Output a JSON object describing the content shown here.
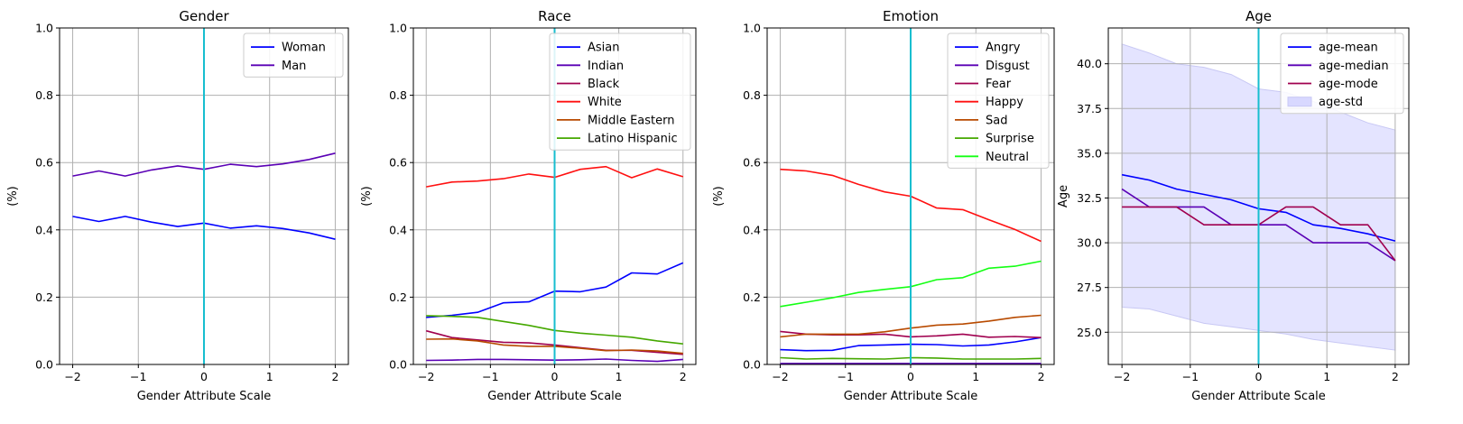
{
  "chart_data": [
    {
      "type": "line",
      "title": "Gender",
      "xlabel": "Gender Attribute Scale",
      "ylabel": "(%)",
      "xlim": [
        -2.2,
        2.2
      ],
      "ylim": [
        0,
        1
      ],
      "xticks": [
        -2,
        -1,
        0,
        1,
        2
      ],
      "xtick_labels": [
        "−2",
        "−1",
        "0",
        "1",
        "2"
      ],
      "yticks": [
        0,
        0.2,
        0.4,
        0.6,
        0.8,
        1.0
      ],
      "ytick_labels": [
        "0.0",
        "0.2",
        "0.4",
        "0.6",
        "0.8",
        "1.0"
      ],
      "grid": true,
      "legend": "upper-right",
      "vline": {
        "x": 0,
        "color": "#17becf"
      },
      "x": [
        -2,
        -1.6,
        -1.2,
        -0.8,
        -0.4,
        0,
        0.4,
        0.8,
        1.2,
        1.6,
        2
      ],
      "series": [
        {
          "name": "Woman",
          "color": "#0000ff",
          "values": [
            0.44,
            0.425,
            0.44,
            0.423,
            0.41,
            0.42,
            0.405,
            0.412,
            0.404,
            0.391,
            0.372
          ]
        },
        {
          "name": "Man",
          "color": "#5a00b5",
          "values": [
            0.56,
            0.575,
            0.56,
            0.578,
            0.59,
            0.58,
            0.595,
            0.588,
            0.596,
            0.609,
            0.628
          ]
        }
      ]
    },
    {
      "type": "line",
      "title": "Race",
      "xlabel": "Gender Attribute Scale",
      "ylabel": "(%)",
      "xlim": [
        -2.2,
        2.2
      ],
      "ylim": [
        0,
        1
      ],
      "xticks": [
        -2,
        -1,
        0,
        1,
        2
      ],
      "xtick_labels": [
        "−2",
        "−1",
        "0",
        "1",
        "2"
      ],
      "yticks": [
        0,
        0.2,
        0.4,
        0.6,
        0.8,
        1.0
      ],
      "ytick_labels": [
        "0.0",
        "0.2",
        "0.4",
        "0.6",
        "0.8",
        "1.0"
      ],
      "grid": true,
      "legend": "upper-right",
      "vline": {
        "x": 0,
        "color": "#17becf"
      },
      "x": [
        -2,
        -1.6,
        -1.2,
        -0.8,
        -0.4,
        0,
        0.4,
        0.8,
        1.2,
        1.6,
        2
      ],
      "series": [
        {
          "name": "Asian",
          "color": "#0000ff",
          "values": [
            0.14,
            0.146,
            0.155,
            0.183,
            0.186,
            0.218,
            0.216,
            0.23,
            0.272,
            0.269,
            0.302
          ]
        },
        {
          "name": "Indian",
          "color": "#5a00b5",
          "values": [
            0.012,
            0.013,
            0.015,
            0.015,
            0.014,
            0.013,
            0.014,
            0.016,
            0.012,
            0.009,
            0.015
          ]
        },
        {
          "name": "Black",
          "color": "#a0004f",
          "values": [
            0.1,
            0.08,
            0.073,
            0.066,
            0.064,
            0.058,
            0.05,
            0.042,
            0.042,
            0.036,
            0.03
          ]
        },
        {
          "name": "White",
          "color": "#ff1010",
          "values": [
            0.528,
            0.542,
            0.545,
            0.552,
            0.566,
            0.556,
            0.58,
            0.588,
            0.555,
            0.581,
            0.558
          ]
        },
        {
          "name": "Middle Eastern",
          "color": "#b84a00",
          "values": [
            0.075,
            0.076,
            0.07,
            0.058,
            0.054,
            0.054,
            0.048,
            0.041,
            0.043,
            0.04,
            0.033
          ]
        },
        {
          "name": "Latino Hispanic",
          "color": "#45a800",
          "values": [
            0.145,
            0.143,
            0.14,
            0.128,
            0.116,
            0.101,
            0.093,
            0.087,
            0.081,
            0.07,
            0.061
          ]
        }
      ]
    },
    {
      "type": "line",
      "title": "Emotion",
      "xlabel": "Gender Attribute Scale",
      "ylabel": "(%)",
      "xlim": [
        -2.2,
        2.2
      ],
      "ylim": [
        0,
        1
      ],
      "xticks": [
        -2,
        -1,
        0,
        1,
        2
      ],
      "xtick_labels": [
        "−2",
        "−1",
        "0",
        "1",
        "2"
      ],
      "yticks": [
        0,
        0.2,
        0.4,
        0.6,
        0.8,
        1.0
      ],
      "ytick_labels": [
        "0.0",
        "0.2",
        "0.4",
        "0.6",
        "0.8",
        "1.0"
      ],
      "grid": true,
      "legend": "upper-right",
      "vline": {
        "x": 0,
        "color": "#17becf"
      },
      "x": [
        -2,
        -1.6,
        -1.2,
        -0.8,
        -0.4,
        0,
        0.4,
        0.8,
        1.2,
        1.6,
        2
      ],
      "series": [
        {
          "name": "Angry",
          "color": "#0000ff",
          "values": [
            0.044,
            0.041,
            0.042,
            0.056,
            0.058,
            0.06,
            0.059,
            0.055,
            0.058,
            0.067,
            0.08
          ]
        },
        {
          "name": "Disgust",
          "color": "#5a00b5",
          "values": [
            0.003,
            0.003,
            0.003,
            0.003,
            0.003,
            0.003,
            0.003,
            0.003,
            0.003,
            0.003,
            0.003
          ]
        },
        {
          "name": "Fear",
          "color": "#a0004f",
          "values": [
            0.098,
            0.09,
            0.088,
            0.088,
            0.09,
            0.082,
            0.085,
            0.09,
            0.081,
            0.083,
            0.08
          ]
        },
        {
          "name": "Happy",
          "color": "#ff1010",
          "values": [
            0.58,
            0.575,
            0.562,
            0.535,
            0.513,
            0.5,
            0.465,
            0.46,
            0.43,
            0.401,
            0.366
          ]
        },
        {
          "name": "Sad",
          "color": "#b84a00",
          "values": [
            0.082,
            0.09,
            0.09,
            0.09,
            0.097,
            0.108,
            0.117,
            0.12,
            0.129,
            0.14,
            0.146
          ]
        },
        {
          "name": "Surprise",
          "color": "#45a800",
          "values": [
            0.02,
            0.016,
            0.018,
            0.017,
            0.016,
            0.02,
            0.019,
            0.016,
            0.016,
            0.016,
            0.018
          ]
        },
        {
          "name": "Neutral",
          "color": "#14ff14",
          "values": [
            0.172,
            0.185,
            0.198,
            0.214,
            0.223,
            0.231,
            0.252,
            0.258,
            0.286,
            0.292,
            0.307
          ]
        }
      ]
    },
    {
      "type": "line",
      "title": "Age",
      "xlabel": "Gender Attribute Scale",
      "ylabel": "Age",
      "xlim": [
        -2.2,
        2.2
      ],
      "ylim": [
        23.2,
        42
      ],
      "xticks": [
        -2,
        -1,
        0,
        1,
        2
      ],
      "xtick_labels": [
        "−2",
        "−1",
        "0",
        "1",
        "2"
      ],
      "yticks": [
        25,
        27.5,
        30,
        32.5,
        35,
        37.5,
        40
      ],
      "ytick_labels": [
        "25.0",
        "27.5",
        "30.0",
        "32.5",
        "35.0",
        "37.5",
        "40.0"
      ],
      "grid": true,
      "legend": "upper-right",
      "vline": {
        "x": 0,
        "color": "#17becf"
      },
      "x": [
        -2,
        -1.6,
        -1.2,
        -0.8,
        -0.4,
        0,
        0.4,
        0.8,
        1.2,
        1.6,
        2
      ],
      "series": [
        {
          "name": "age-mean",
          "color": "#0000ff",
          "values": [
            33.8,
            33.5,
            33.0,
            32.7,
            32.4,
            31.9,
            31.7,
            31.0,
            30.8,
            30.5,
            30.1
          ]
        },
        {
          "name": "age-median",
          "color": "#5a00b5",
          "values": [
            33.0,
            32.0,
            32.0,
            32.0,
            31.0,
            31.0,
            31.0,
            30.0,
            30.0,
            30.0,
            29.0
          ]
        },
        {
          "name": "age-mode",
          "color": "#a0004f",
          "values": [
            32.0,
            32.0,
            32.0,
            31.0,
            31.0,
            31.0,
            32.0,
            32.0,
            31.0,
            31.0,
            29.0
          ]
        }
      ],
      "band": {
        "name": "age-std",
        "color": "#d8d8ff",
        "lower": [
          26.4,
          26.3,
          25.9,
          25.5,
          25.3,
          25.1,
          24.9,
          24.6,
          24.4,
          24.2,
          24.0
        ],
        "upper": [
          41.1,
          40.6,
          40.0,
          39.8,
          39.4,
          38.6,
          38.4,
          37.9,
          37.3,
          36.7,
          36.3
        ]
      }
    }
  ]
}
